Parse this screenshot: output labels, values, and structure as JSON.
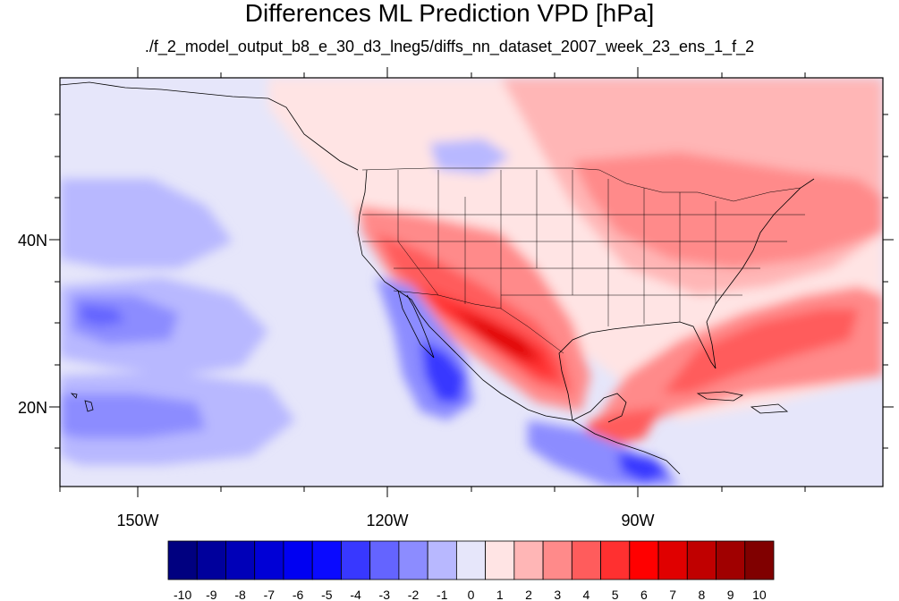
{
  "title": "Differences ML Prediction VPD [hPa]",
  "subtitle": "./f_2_model_output_b8_e_30_d3_lneg5/diffs_nn_dataset_2007_week_23_ens_1_f_2",
  "lat_labels": [
    "40N",
    "20N"
  ],
  "lon_labels": [
    "150W",
    "120W",
    "90W"
  ],
  "colorbar": {
    "labels": [
      "-10",
      "-9",
      "-8",
      "-7",
      "-6",
      "-5",
      "-4",
      "-3",
      "-2",
      "-1",
      "0",
      "1",
      "2",
      "3",
      "4",
      "5",
      "6",
      "7",
      "8",
      "9",
      "10"
    ],
    "colors": [
      "#000080",
      "#00009c",
      "#0000b8",
      "#0000d6",
      "#0000f2",
      "#0a0aff",
      "#3838ff",
      "#6464ff",
      "#8c8cff",
      "#b8b8ff",
      "#e6e6fa",
      "#ffe4e4",
      "#ffb6b6",
      "#ff8a8a",
      "#ff5c5c",
      "#ff3030",
      "#ff0000",
      "#e00000",
      "#c00000",
      "#a00000",
      "#800000"
    ]
  }
}
